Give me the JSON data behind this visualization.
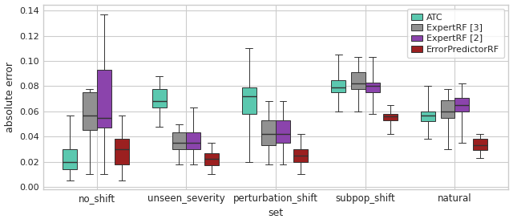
{
  "categories": [
    "no_shift",
    "unseen_severity",
    "perturbation_shift",
    "subpop_shift",
    "natural"
  ],
  "xlabel": "set",
  "ylabel": "absolute error",
  "ylim": [
    -0.002,
    0.145
  ],
  "yticks": [
    0.0,
    0.02,
    0.04,
    0.06,
    0.08,
    0.1,
    0.12,
    0.14
  ],
  "colors": {
    "ATC": "#5BC8AF",
    "ExpertRF3": "#919191",
    "ExpertRF2": "#8B44AC",
    "ErrorPredictorRF": "#9B2020"
  },
  "legend_labels": [
    "ATC",
    "ExpertRF [3]",
    "ExpertRF [2]",
    "ErrorPredictorRF"
  ],
  "box_data": {
    "ATC": {
      "no_shift": {
        "whislo": 0.005,
        "q1": 0.014,
        "med": 0.02,
        "q3": 0.03,
        "whishi": 0.057
      },
      "unseen_severity": {
        "whislo": 0.048,
        "q1": 0.063,
        "med": 0.068,
        "q3": 0.078,
        "whishi": 0.088
      },
      "perturbation_shift": {
        "whislo": 0.02,
        "q1": 0.058,
        "med": 0.072,
        "q3": 0.079,
        "whishi": 0.11
      },
      "subpop_shift": {
        "whislo": 0.06,
        "q1": 0.075,
        "med": 0.079,
        "q3": 0.085,
        "whishi": 0.105
      },
      "natural": {
        "whislo": 0.038,
        "q1": 0.052,
        "med": 0.057,
        "q3": 0.06,
        "whishi": 0.08
      }
    },
    "ExpertRF3": {
      "no_shift": {
        "whislo": 0.01,
        "q1": 0.045,
        "med": 0.057,
        "q3": 0.075,
        "whishi": 0.078
      },
      "unseen_severity": {
        "whislo": 0.018,
        "q1": 0.03,
        "med": 0.035,
        "q3": 0.043,
        "whishi": 0.05
      },
      "perturbation_shift": {
        "whislo": 0.018,
        "q1": 0.033,
        "med": 0.042,
        "q3": 0.053,
        "whishi": 0.068
      },
      "subpop_shift": {
        "whislo": 0.06,
        "q1": 0.078,
        "med": 0.082,
        "q3": 0.091,
        "whishi": 0.103
      },
      "natural": {
        "whislo": 0.03,
        "q1": 0.055,
        "med": 0.06,
        "q3": 0.069,
        "whishi": 0.078
      }
    },
    "ExpertRF2": {
      "no_shift": {
        "whislo": 0.01,
        "q1": 0.047,
        "med": 0.055,
        "q3": 0.093,
        "whishi": 0.137
      },
      "unseen_severity": {
        "whislo": 0.018,
        "q1": 0.03,
        "med": 0.035,
        "q3": 0.043,
        "whishi": 0.063
      },
      "perturbation_shift": {
        "whislo": 0.018,
        "q1": 0.035,
        "med": 0.042,
        "q3": 0.053,
        "whishi": 0.068
      },
      "subpop_shift": {
        "whislo": 0.058,
        "q1": 0.075,
        "med": 0.08,
        "q3": 0.083,
        "whishi": 0.103
      },
      "natural": {
        "whislo": 0.035,
        "q1": 0.06,
        "med": 0.065,
        "q3": 0.071,
        "whishi": 0.082
      }
    },
    "ErrorPredictorRF": {
      "no_shift": {
        "whislo": 0.005,
        "q1": 0.018,
        "med": 0.03,
        "q3": 0.038,
        "whishi": 0.057
      },
      "unseen_severity": {
        "whislo": 0.01,
        "q1": 0.017,
        "med": 0.022,
        "q3": 0.027,
        "whishi": 0.035
      },
      "perturbation_shift": {
        "whislo": 0.01,
        "q1": 0.02,
        "med": 0.025,
        "q3": 0.03,
        "whishi": 0.042
      },
      "subpop_shift": {
        "whislo": 0.042,
        "q1": 0.053,
        "med": 0.056,
        "q3": 0.058,
        "whishi": 0.065
      },
      "natural": {
        "whislo": 0.023,
        "q1": 0.029,
        "med": 0.033,
        "q3": 0.038,
        "whishi": 0.042
      }
    }
  },
  "figsize": [
    6.4,
    2.78
  ],
  "dpi": 100
}
